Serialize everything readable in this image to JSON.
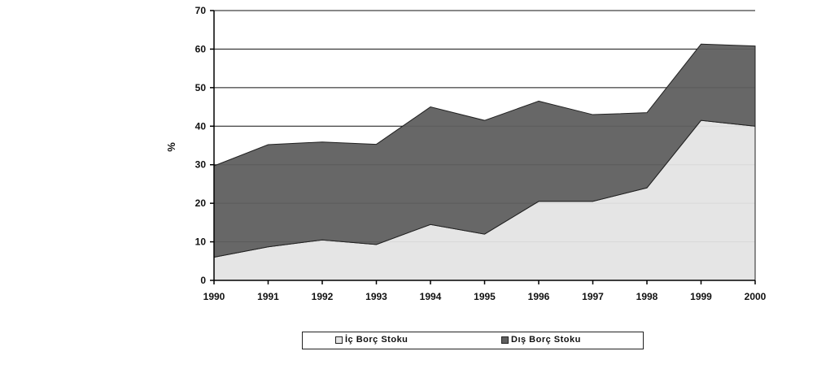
{
  "chart_data": {
    "type": "area",
    "stacked": true,
    "x": [
      "1990",
      "1991",
      "1992",
      "1993",
      "1994",
      "1995",
      "1996",
      "1997",
      "1998",
      "1999",
      "2000"
    ],
    "series": [
      {
        "name": "İç Borç Stoku",
        "values": [
          6,
          8.7,
          10.5,
          9.3,
          14.5,
          12,
          20.5,
          20.5,
          24,
          41.5,
          40
        ],
        "color": "#e4e4e4"
      },
      {
        "name": "Dış Borç Stoku",
        "values": [
          23.7,
          26.5,
          25.4,
          26,
          30.5,
          29.5,
          26,
          22.5,
          19.5,
          19.8,
          20.8
        ],
        "color": "#5f5f5f"
      }
    ],
    "ylabel": "%",
    "ylim": [
      0,
      70
    ],
    "yticks": [
      0,
      10,
      20,
      30,
      40,
      50,
      60,
      70
    ],
    "grid": true,
    "legend": "bottom"
  }
}
